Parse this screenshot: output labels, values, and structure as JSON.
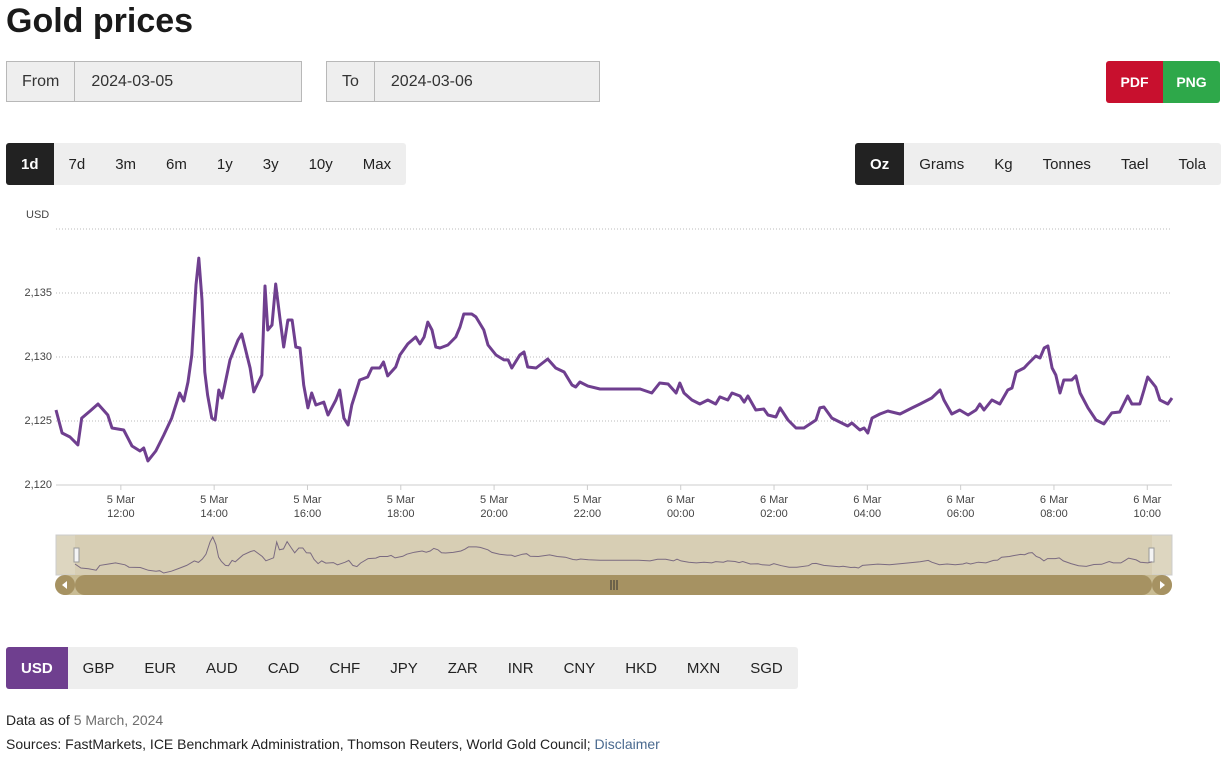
{
  "header": {
    "title": "Gold prices"
  },
  "date_range": {
    "from_label": "From",
    "from_value": "2024-03-05",
    "to_label": "To",
    "to_value": "2024-03-06"
  },
  "export_buttons": [
    {
      "label": "PDF",
      "color": "#c8102e"
    },
    {
      "label": "PNG",
      "color": "#2ea84a"
    }
  ],
  "range_buttons": [
    "1d",
    "7d",
    "3m",
    "6m",
    "1y",
    "3y",
    "10y",
    "Max"
  ],
  "unit_buttons": [
    "Oz",
    "Grams",
    "Kg",
    "Tonnes",
    "Tael",
    "Tola"
  ],
  "chart_data": {
    "type": "line",
    "y_label": "USD",
    "color": "#6f3f8f",
    "grid": true,
    "x": [
      10.61,
      10.74,
      10.91,
      11.08,
      11.16,
      11.34,
      11.51,
      11.72,
      11.81,
      12.06,
      12.24,
      12.41,
      12.49,
      12.58,
      12.75,
      12.92,
      13.09,
      13.26,
      13.35,
      13.44,
      13.52,
      13.61,
      13.67,
      13.74,
      13.8,
      13.86,
      13.95,
      14.02,
      14.1,
      14.17,
      14.34,
      14.51,
      14.59,
      14.77,
      14.85,
      15.02,
      15.09,
      15.15,
      15.24,
      15.32,
      15.41,
      15.49,
      15.58,
      15.67,
      15.75,
      15.84,
      15.92,
      16.01,
      16.09,
      16.18,
      16.35,
      16.44,
      16.61,
      16.69,
      16.78,
      16.87,
      16.95,
      17.12,
      17.29,
      17.38,
      17.55,
      17.63,
      17.72,
      17.89,
      17.98,
      18.15,
      18.32,
      18.41,
      18.5,
      18.58,
      18.67,
      18.75,
      18.84,
      19.01,
      19.18,
      19.27,
      19.35,
      19.52,
      19.61,
      19.78,
      19.87,
      20.04,
      20.21,
      20.3,
      20.38,
      20.55,
      20.64,
      20.72,
      20.9,
      21.15,
      21.32,
      21.5,
      21.67,
      21.75,
      21.84,
      22.01,
      22.27,
      23.13,
      23.38,
      23.55,
      23.73,
      23.9,
      23.98,
      24.07,
      24.24,
      24.41,
      24.58,
      24.75,
      24.84,
      25.01,
      25.1,
      25.27,
      25.36,
      25.44,
      25.61,
      25.78,
      25.87,
      26.04,
      26.13,
      26.3,
      26.47,
      26.64,
      26.9,
      26.98,
      27.07,
      27.24,
      27.58,
      27.67,
      27.84,
      27.93,
      28.01,
      28.1,
      28.27,
      28.44,
      28.7,
      28.96,
      29.13,
      29.38,
      29.56,
      29.64,
      29.81,
      29.98,
      30.16,
      30.33,
      30.41,
      30.5,
      30.67,
      30.84,
      31.01,
      31.1,
      31.19,
      31.36,
      31.44,
      31.61,
      31.7,
      31.79,
      31.87,
      31.96,
      32.04,
      32.13,
      32.21,
      32.38,
      32.47,
      32.56,
      32.73,
      32.9,
      33.07,
      33.24,
      33.41,
      33.58,
      33.67,
      33.84,
      33.93,
      34.01,
      34.18,
      34.27,
      34.44,
      34.53
    ],
    "values": [
      2125.86,
      2124.06,
      2123.75,
      2123.13,
      2125.23,
      2125.78,
      2126.33,
      2125.47,
      2124.45,
      2124.3,
      2123.05,
      2122.66,
      2122.89,
      2121.88,
      2122.66,
      2123.91,
      2125.23,
      2127.19,
      2126.56,
      2128.05,
      2130.16,
      2135.63,
      2137.73,
      2134.45,
      2128.83,
      2127.03,
      2125.23,
      2125.08,
      2127.42,
      2126.8,
      2129.77,
      2131.33,
      2131.8,
      2129.14,
      2127.27,
      2128.59,
      2135.55,
      2132.11,
      2132.5,
      2135.7,
      2133.05,
      2130.78,
      2132.89,
      2132.89,
      2130.78,
      2130.7,
      2127.81,
      2126.02,
      2127.19,
      2126.25,
      2126.48,
      2125.47,
      2126.64,
      2127.42,
      2125.23,
      2124.69,
      2126.25,
      2128.2,
      2128.44,
      2129.14,
      2129.14,
      2129.61,
      2128.52,
      2129.22,
      2130.16,
      2131.02,
      2131.56,
      2131.02,
      2131.56,
      2132.73,
      2132.11,
      2130.78,
      2130.7,
      2130.94,
      2131.56,
      2132.34,
      2133.36,
      2133.36,
      2133.13,
      2132.11,
      2130.94,
      2130.16,
      2129.77,
      2129.77,
      2129.14,
      2130.16,
      2130.39,
      2129.22,
      2129.14,
      2129.84,
      2129.14,
      2128.83,
      2127.81,
      2127.66,
      2128.05,
      2127.73,
      2127.5,
      2127.5,
      2127.19,
      2127.97,
      2127.89,
      2127.19,
      2127.97,
      2127.19,
      2126.64,
      2126.33,
      2126.64,
      2126.33,
      2126.88,
      2126.64,
      2127.19,
      2126.95,
      2126.48,
      2126.95,
      2125.86,
      2125.94,
      2125.47,
      2125.31,
      2126.02,
      2125.08,
      2124.45,
      2124.45,
      2125.08,
      2126.02,
      2126.09,
      2125.23,
      2124.61,
      2124.84,
      2124.3,
      2124.45,
      2124.06,
      2125.23,
      2125.55,
      2125.78,
      2125.55,
      2126.02,
      2126.33,
      2126.8,
      2127.42,
      2126.64,
      2125.55,
      2125.86,
      2125.47,
      2125.86,
      2126.33,
      2125.86,
      2126.64,
      2126.33,
      2127.42,
      2127.58,
      2128.83,
      2129.14,
      2129.45,
      2130.08,
      2129.92,
      2130.7,
      2130.86,
      2129.14,
      2128.59,
      2127.19,
      2128.2,
      2128.2,
      2128.52,
      2127.19,
      2126.02,
      2125.08,
      2124.77,
      2125.63,
      2125.7,
      2126.95,
      2126.33,
      2126.33,
      2127.42,
      2128.44,
      2127.66,
      2126.64,
      2126.33,
      2126.8
    ],
    "xlim": [
      10.61,
      34.53
    ],
    "xticks": [
      {
        "value": 12,
        "label": "5 Mar 12:00"
      },
      {
        "value": 14,
        "label": "5 Mar 14:00"
      },
      {
        "value": 16,
        "label": "5 Mar 16:00"
      },
      {
        "value": 18,
        "label": "5 Mar 18:00"
      },
      {
        "value": 20,
        "label": "5 Mar 20:00"
      },
      {
        "value": 22,
        "label": "5 Mar 22:00"
      },
      {
        "value": 24,
        "label": "6 Mar 00:00"
      },
      {
        "value": 26,
        "label": "6 Mar 02:00"
      },
      {
        "value": 28,
        "label": "6 Mar 04:00"
      },
      {
        "value": 30,
        "label": "6 Mar 06:00"
      },
      {
        "value": 32,
        "label": "6 Mar 08:00"
      },
      {
        "value": 34,
        "label": "6 Mar 10:00"
      }
    ],
    "ylim": [
      2120,
      2140
    ],
    "yticks": [
      {
        "value": 2120,
        "label": "2,120"
      },
      {
        "value": 2125,
        "label": "2,125"
      },
      {
        "value": 2130,
        "label": "2,130"
      },
      {
        "value": 2135,
        "label": "2,135"
      }
    ]
  },
  "currency_buttons": [
    "USD",
    "GBP",
    "EUR",
    "AUD",
    "CAD",
    "CHF",
    "JPY",
    "ZAR",
    "INR",
    "CNY",
    "HKD",
    "MXN",
    "SGD"
  ],
  "footer": {
    "data_as_of_label": "Data as of",
    "data_as_of_date": "5 March, 2024",
    "sources": "Sources: FastMarkets, ICE Benchmark Administration, Thomson Reuters, World Gold Council;",
    "disclaimer": "Disclaimer"
  }
}
